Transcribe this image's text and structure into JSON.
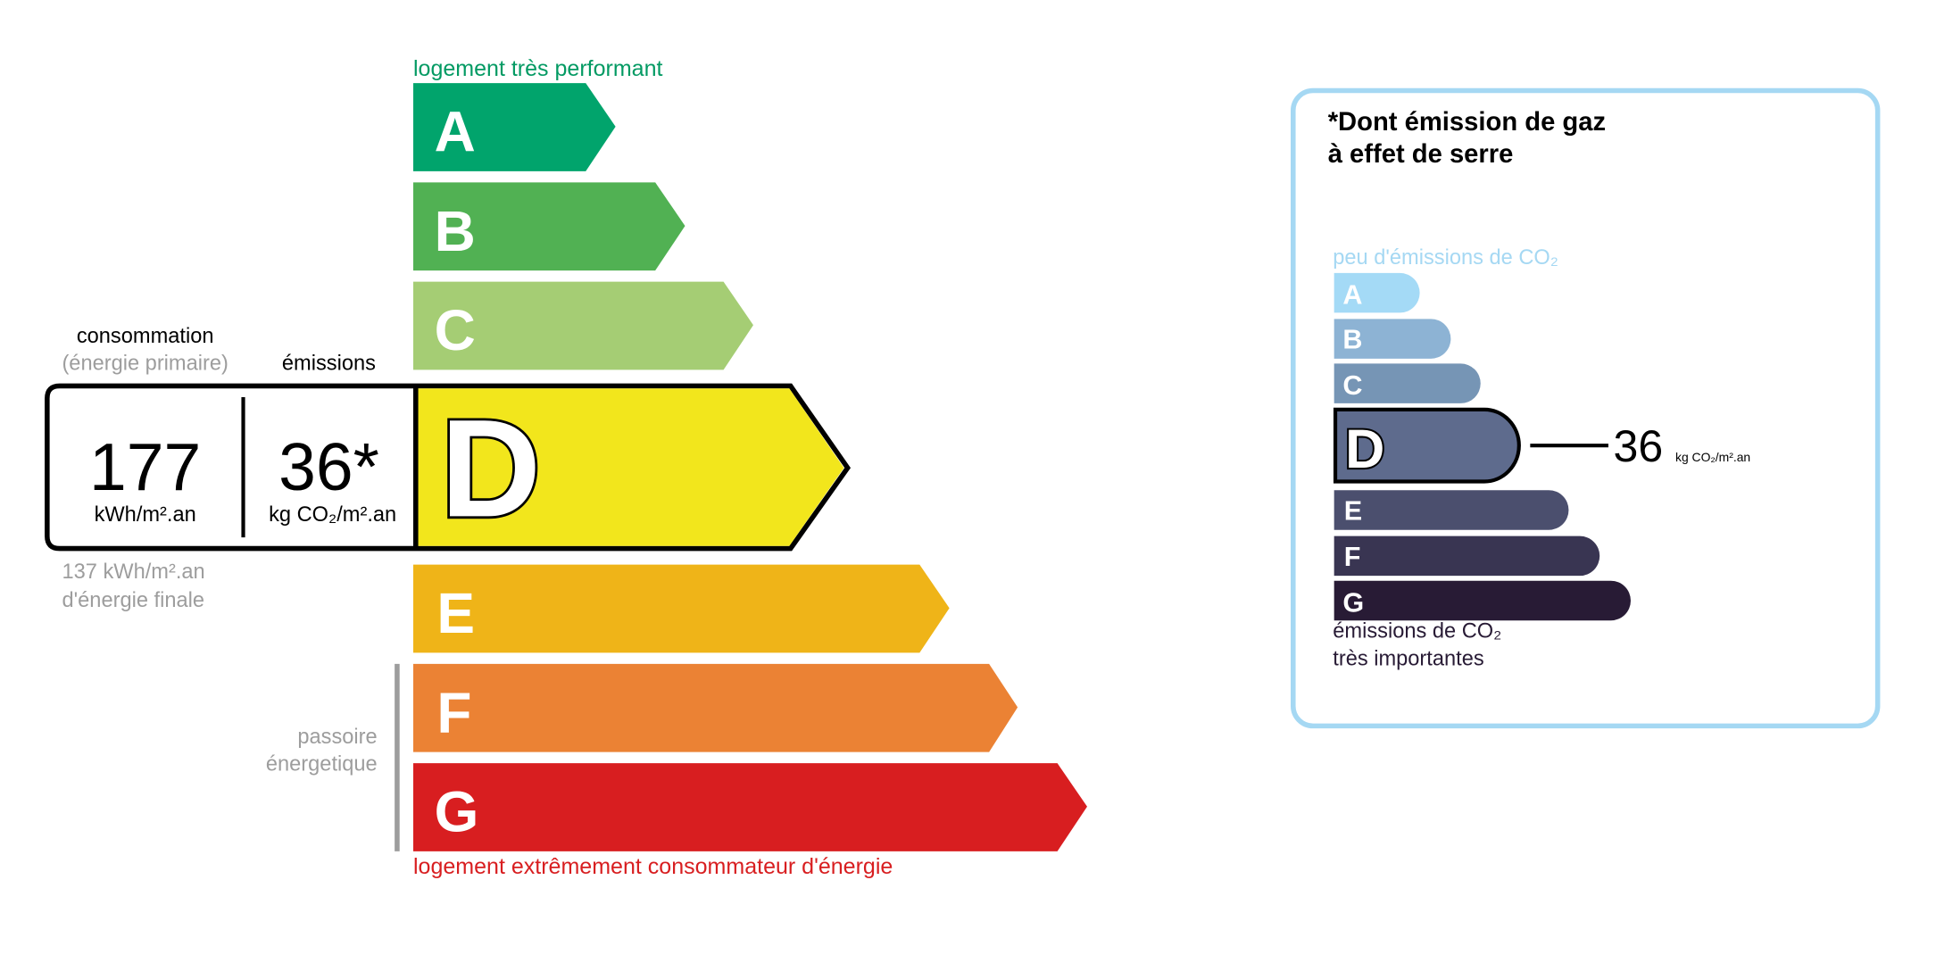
{
  "energy": {
    "top_label": "logement très performant",
    "bottom_label": "logement extrêmement consommateur d'énergie",
    "passoire_line1": "passoire",
    "passoire_line2": "énergetique",
    "consommation_label": "consommation",
    "primaire_label": "(énergie primaire)",
    "emissions_label": "émissions",
    "consumption_value": "177",
    "consumption_unit": "kWh/m².an",
    "emission_value": "36*",
    "emission_unit": "kg CO₂/m².an",
    "final_value": "137 kWh/m².an",
    "final_label": "d'énergie finale",
    "current_class": "D",
    "classes": [
      {
        "letter": "A",
        "color": "#01a46c"
      },
      {
        "letter": "B",
        "color": "#51b153"
      },
      {
        "letter": "C",
        "color": "#a5cd74"
      },
      {
        "letter": "D",
        "color": "#f2e61c"
      },
      {
        "letter": "E",
        "color": "#efb418"
      },
      {
        "letter": "F",
        "color": "#eb8234"
      },
      {
        "letter": "G",
        "color": "#d81e20"
      }
    ]
  },
  "ges": {
    "title_line1": "*Dont émission de gaz",
    "title_line2": "à effet de serre",
    "top_label": "peu d'émissions de CO₂",
    "bottom_line1": "émissions de CO₂",
    "bottom_line2": "très importantes",
    "current_class": "D",
    "value": "36",
    "unit": "kg CO₂/m².an",
    "border_color": "#a5d8f3",
    "classes": [
      {
        "letter": "A",
        "color": "#a4daf6"
      },
      {
        "letter": "B",
        "color": "#8db3d4"
      },
      {
        "letter": "C",
        "color": "#7695b5"
      },
      {
        "letter": "D",
        "color": "#5e6b8d"
      },
      {
        "letter": "E",
        "color": "#4b4f6e"
      },
      {
        "letter": "F",
        "color": "#393552"
      },
      {
        "letter": "G",
        "color": "#281b35"
      }
    ]
  }
}
